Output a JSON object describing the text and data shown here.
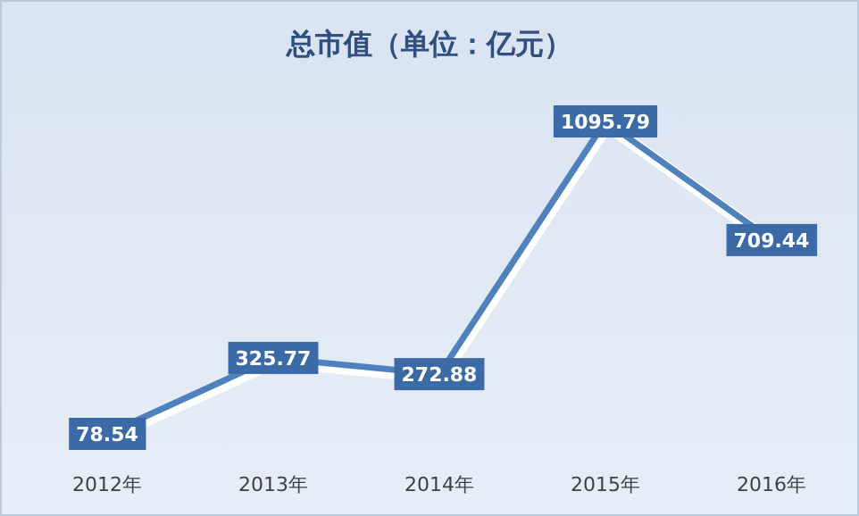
{
  "chart_data": {
    "type": "line",
    "title": "总市值（单位：亿元）",
    "categories": [
      "2012年",
      "2013年",
      "2014年",
      "2015年",
      "2016年"
    ],
    "series": [
      {
        "color": "#4f81bd",
        "values": [
          78.54,
          325.77,
          272.88,
          1095.79,
          709.44
        ]
      }
    ],
    "data_labels": true,
    "line_style": "solid"
  }
}
